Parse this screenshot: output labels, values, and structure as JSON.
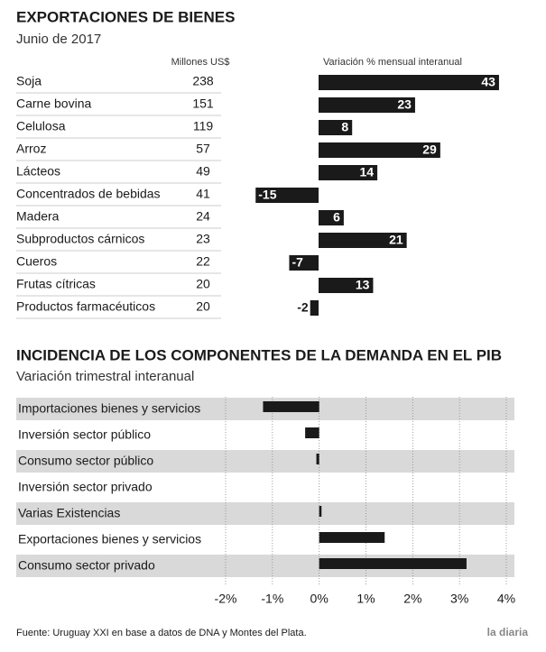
{
  "chart_data": [
    {
      "type": "bar",
      "title": "EXPORTACIONES DE BIENES",
      "subtitle": "Junio de 2017",
      "amount_header": "Millones US$",
      "value_header": "Variación % mensual interanual",
      "categories": [
        "Soja",
        "Carne bovina",
        "Celulosa",
        "Arroz",
        "Lácteos",
        "Concentrados de bebidas",
        "Madera",
        "Subproductos cárnicos",
        "Cueros",
        "Frutas cítricas",
        "Productos farmacéuticos"
      ],
      "amounts": [
        238,
        151,
        119,
        57,
        49,
        41,
        24,
        23,
        22,
        20,
        20
      ],
      "values": [
        43,
        23,
        8,
        29,
        14,
        -15,
        6,
        21,
        -7,
        13,
        -2
      ],
      "color": "#1a1a1a"
    },
    {
      "type": "hbar",
      "title": "INCIDENCIA DE LOS COMPONENTES DE LA DEMANDA EN EL PIB",
      "subtitle": "Variación trimestral interanual",
      "categories": [
        "Importaciones bienes y servicios",
        "Inversión sector público",
        "Consumo sector público",
        "Inversión sector privado",
        "Varias Existencias",
        "Exportaciones bienes y servicios",
        "Consumo sector privado"
      ],
      "values": [
        -1.2,
        -0.3,
        -0.06,
        0,
        0.05,
        1.4,
        3.15
      ],
      "color": "#1a1a1a",
      "xlim": [
        -2,
        4
      ],
      "xticks": [
        {
          "value": -2,
          "label": "-2%"
        },
        {
          "value": -1,
          "label": "-1%"
        },
        {
          "value": 0,
          "label": "0%"
        },
        {
          "value": 1,
          "label": "1%"
        },
        {
          "value": 2,
          "label": "2%"
        },
        {
          "value": 3,
          "label": "3%"
        },
        {
          "value": 4,
          "label": "4%"
        }
      ],
      "grid": true
    }
  ],
  "source": "Fuente: Uruguay XXI en base a datos de DNA y Montes del Plata.",
  "logo": "la diaria"
}
